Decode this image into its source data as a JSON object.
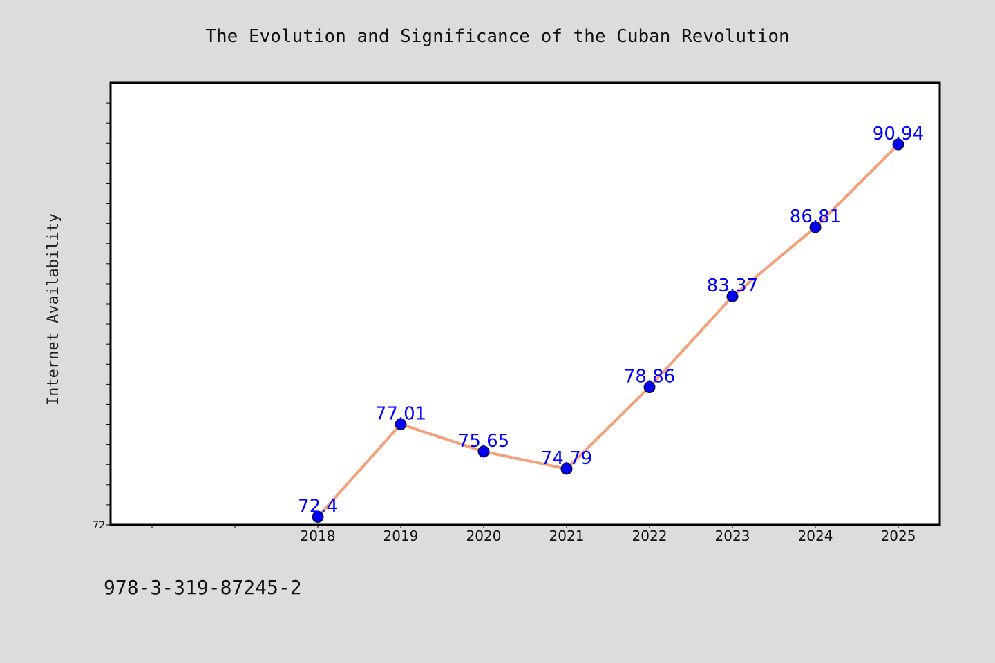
{
  "chart_data": {
    "type": "line",
    "title": "The Evolution and Significance of the Cuban Revolution",
    "xlabel": "",
    "ylabel": "Internet Availability",
    "x": [
      "2018",
      "2019",
      "2020",
      "2021",
      "2022",
      "2023",
      "2024",
      "2025"
    ],
    "series": [
      {
        "values": [
          72.4,
          77.01,
          75.65,
          74.79,
          78.86,
          83.37,
          86.81,
          90.94
        ],
        "labels": [
          "72.4",
          "77.01",
          "75.65",
          "74.79",
          "78.86",
          "83.37",
          "86.81",
          "90.94"
        ],
        "line_color": "#f4a07a",
        "marker_color": "#0000ee"
      }
    ],
    "ylim": [
      72,
      94
    ],
    "yticks": [
      72
    ],
    "grid": false,
    "legend": "none"
  },
  "footer": {
    "text": "978-3-319-87245-2"
  },
  "colors": {
    "background": "#dcdcdc",
    "plot_background": "#ffffff",
    "label_color": "#0000ff"
  }
}
